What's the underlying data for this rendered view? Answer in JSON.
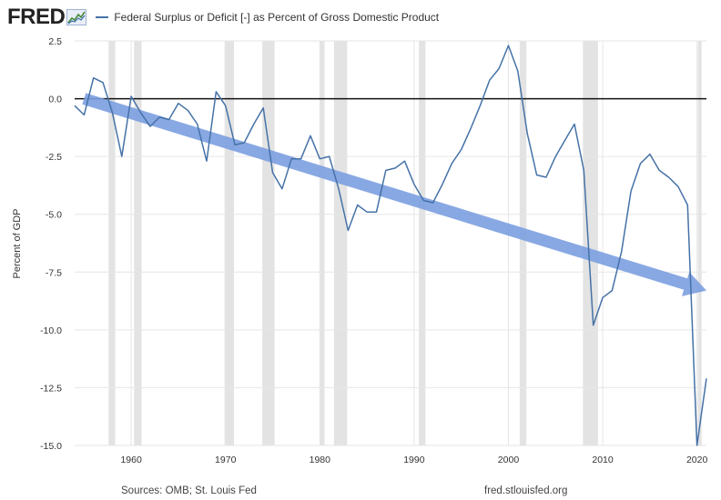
{
  "header": {
    "logo": "FRED",
    "legend_label": "Federal Surplus or Deficit [-] as Percent of Gross Domestic Product",
    "line_color": "#4572a7"
  },
  "footer": {
    "sources": "Sources: OMB; St. Louis Fed",
    "site": "fred.stlouisfed.org"
  },
  "chart_data": {
    "type": "line",
    "title": "Federal Surplus or Deficit [-] as Percent of Gross Domestic Product",
    "xlabel": "",
    "ylabel": "Percent of GDP",
    "xlim": [
      1954,
      2021
    ],
    "ylim": [
      -15.0,
      2.5
    ],
    "yticks": [
      2.5,
      0.0,
      -2.5,
      -5.0,
      -7.5,
      -10.0,
      -12.5,
      -15.0
    ],
    "ytick_labels": [
      "2.5",
      "0.0",
      "-2.5",
      "-5.0",
      "-7.5",
      "-10.0",
      "-12.5",
      "-15.0"
    ],
    "xticks": [
      1960,
      1970,
      1980,
      1990,
      2000,
      2010,
      2020
    ],
    "xtick_labels": [
      "1960",
      "1970",
      "1980",
      "1990",
      "2000",
      "2010",
      "2020"
    ],
    "grid": true,
    "recessions": [
      [
        1957.6,
        1958.3
      ],
      [
        1960.3,
        1961.1
      ],
      [
        1969.9,
        1970.9
      ],
      [
        1973.9,
        1975.2
      ],
      [
        1980.0,
        1980.5
      ],
      [
        1981.5,
        1982.9
      ],
      [
        1990.5,
        1991.2
      ],
      [
        2001.2,
        2001.9
      ],
      [
        2007.9,
        2009.5
      ],
      [
        2020.1,
        2020.4
      ]
    ],
    "series": [
      {
        "name": "Federal Surplus or Deficit [-] as Percent of Gross Domestic Product",
        "color": "#4572a7",
        "x": [
          1954,
          1955,
          1956,
          1957,
          1958,
          1959,
          1960,
          1961,
          1962,
          1963,
          1964,
          1965,
          1966,
          1967,
          1968,
          1969,
          1970,
          1971,
          1972,
          1973,
          1974,
          1975,
          1976,
          1977,
          1978,
          1979,
          1980,
          1981,
          1982,
          1983,
          1984,
          1985,
          1986,
          1987,
          1988,
          1989,
          1990,
          1991,
          1992,
          1993,
          1994,
          1995,
          1996,
          1997,
          1998,
          1999,
          2000,
          2001,
          2002,
          2003,
          2004,
          2005,
          2006,
          2007,
          2008,
          2009,
          2010,
          2011,
          2012,
          2013,
          2014,
          2015,
          2016,
          2017,
          2018,
          2019,
          2020,
          2021
        ],
        "values": [
          -0.3,
          -0.7,
          0.9,
          0.7,
          -0.6,
          -2.5,
          0.1,
          -0.6,
          -1.2,
          -0.8,
          -0.9,
          -0.2,
          -0.5,
          -1.1,
          -2.7,
          0.3,
          -0.3,
          -2.0,
          -1.9,
          -1.1,
          -0.4,
          -3.2,
          -3.9,
          -2.6,
          -2.6,
          -1.6,
          -2.6,
          -2.5,
          -3.9,
          -5.7,
          -4.6,
          -4.9,
          -4.9,
          -3.1,
          -3.0,
          -2.7,
          -3.7,
          -4.4,
          -4.5,
          -3.7,
          -2.8,
          -2.2,
          -1.3,
          -0.3,
          0.8,
          1.3,
          2.3,
          1.2,
          -1.5,
          -3.3,
          -3.4,
          -2.5,
          -1.8,
          -1.1,
          -3.1,
          -9.8,
          -8.6,
          -8.3,
          -6.6,
          -4.0,
          -2.8,
          -2.4,
          -3.1,
          -3.4,
          -3.8,
          -4.6,
          -15.0,
          -12.1
        ]
      }
    ],
    "annotations": [
      {
        "type": "arrow",
        "color": "#7b9ee0",
        "from": [
          1955.0,
          0.0
        ],
        "to": [
          2021.0,
          -8.3
        ]
      }
    ]
  }
}
